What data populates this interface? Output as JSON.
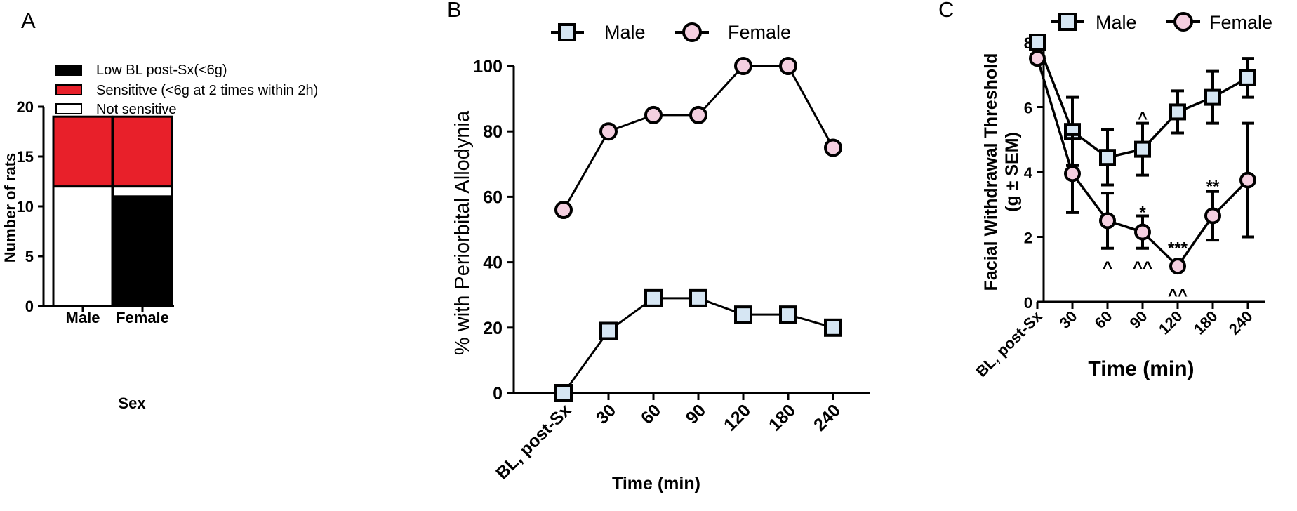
{
  "colors": {
    "black": "#000000",
    "red": "#e8202a",
    "white": "#ffffff",
    "male_fill": "#d6e6f3",
    "female_fill": "#f4cfe0"
  },
  "chart_data": [
    {
      "panel": "A",
      "type": "bar",
      "stacked": true,
      "title": "",
      "xlabel": "Sex",
      "ylabel": "Number of rats",
      "categories": [
        "Male",
        "Female"
      ],
      "ylim": [
        0,
        20
      ],
      "yticks": [
        "0",
        "5",
        "10",
        "15",
        "20"
      ],
      "series": [
        {
          "name": "Low BL post-Sx(<6g)",
          "color": "#000000",
          "values": [
            0,
            11
          ]
        },
        {
          "name": "Not sensitive",
          "color": "#ffffff",
          "values": [
            12,
            1
          ]
        },
        {
          "name": "Sensititve  (<6g at 2 times within 2h)",
          "color": "#e8202a",
          "values": [
            7,
            7
          ]
        }
      ],
      "legend_order": [
        "Low BL post-Sx(<6g)",
        "Sensititve  (<6g at 2 times within 2h)",
        "Not sensitive"
      ]
    },
    {
      "panel": "B",
      "type": "line",
      "title": "",
      "xlabel": "Time (min)",
      "ylabel": "% with Periorbital Allodynia",
      "categories": [
        "BL, post-Sx",
        "30",
        "60",
        "90",
        "120",
        "180",
        "240"
      ],
      "ylim": [
        0,
        100
      ],
      "yticks": [
        "0",
        "20",
        "40",
        "60",
        "80",
        "100"
      ],
      "series": [
        {
          "name": "Male",
          "marker": "square",
          "values": [
            0,
            19,
            29,
            29,
            24,
            24,
            20
          ]
        },
        {
          "name": "Female",
          "marker": "circle",
          "values": [
            56,
            80,
            85,
            85,
            100,
            100,
            75
          ]
        }
      ]
    },
    {
      "panel": "C",
      "type": "line",
      "title": "",
      "xlabel": "Time (min)",
      "ylabel": "Facial Withdrawal Threshold (g ± SEM)",
      "categories": [
        "BL, post-Sx",
        "30",
        "60",
        "90",
        "120",
        "180",
        "240"
      ],
      "ylim": [
        0,
        8
      ],
      "yticks": [
        "0",
        "2",
        "4",
        "6",
        "8"
      ],
      "series": [
        {
          "name": "Male",
          "marker": "square",
          "values": [
            8.0,
            5.25,
            4.45,
            4.7,
            5.85,
            6.3,
            6.9
          ],
          "sem": [
            0.1,
            1.05,
            0.85,
            0.8,
            0.65,
            0.8,
            0.6
          ]
        },
        {
          "name": "Female",
          "marker": "circle",
          "values": [
            7.5,
            3.95,
            2.5,
            2.15,
            1.1,
            2.65,
            3.75
          ],
          "sem": [
            0.1,
            1.2,
            0.85,
            0.5,
            0.1,
            0.75,
            1.75
          ]
        }
      ],
      "annotations": [
        {
          "text": "^",
          "category": "90",
          "y": 5.7
        },
        {
          "text": "*",
          "category": "90",
          "y": 2.8
        },
        {
          "text": "^",
          "category": "60",
          "y": 1.1
        },
        {
          "text": "^^",
          "category": "90",
          "y": 1.1
        },
        {
          "text": "***",
          "category": "120",
          "y": 1.7
        },
        {
          "text": "^^",
          "category": "120",
          "y": 0.25
        },
        {
          "text": "**",
          "category": "180",
          "y": 3.6
        }
      ]
    }
  ],
  "panels": {
    "A": {
      "label": "A"
    },
    "B": {
      "label": "B"
    },
    "C": {
      "label": "C"
    }
  },
  "labels": {
    "ylabelC_line1": "Facial Withdrawal Threshold",
    "ylabelC_line2": "(g ± SEM)"
  }
}
